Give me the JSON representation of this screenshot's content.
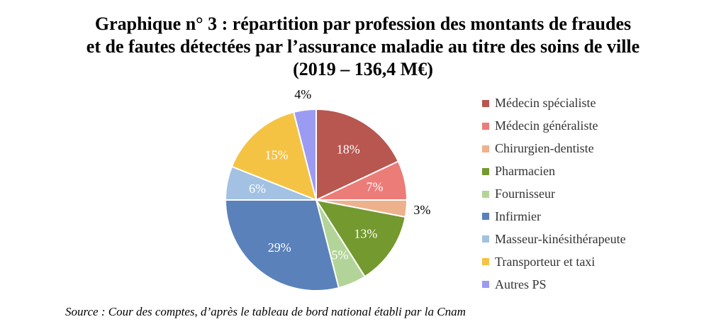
{
  "chart_data": {
    "type": "pie",
    "title": [
      "Graphique n° 3 : répartition par profession des montants de fraudes",
      "et de fautes détectées par l’assurance maladie au titre des soins de ville",
      "(2019 – 136,4 M€)"
    ],
    "slices": [
      {
        "label": "Médecin spécialiste",
        "value": 18,
        "display": "18%",
        "color": "#B85650"
      },
      {
        "label": "Médecin généraliste",
        "value": 7,
        "display": "7%",
        "color": "#EC7C78"
      },
      {
        "label": "Chirurgien-dentiste",
        "value": 3,
        "display": "3%",
        "color": "#EDB18C"
      },
      {
        "label": "Pharmacien",
        "value": 13,
        "display": "13%",
        "color": "#74992F"
      },
      {
        "label": "Fournisseur",
        "value": 5,
        "display": "5%",
        "color": "#B3D498"
      },
      {
        "label": "Infirmier",
        "value": 29,
        "display": "29%",
        "color": "#5A81BA"
      },
      {
        "label": "Masseur-kinésithérapeute",
        "value": 6,
        "display": "6%",
        "color": "#A3C1E2"
      },
      {
        "label": "Transporteur et taxi",
        "value": 15,
        "display": "15%",
        "color": "#F5C344"
      },
      {
        "label": "Autres PS",
        "value": 4,
        "display": "4%",
        "color": "#9C9BF4"
      }
    ],
    "legend_position": "right"
  },
  "source": "Source : Cour des comptes, d’après le tableau de bord national établi par la Cnam"
}
